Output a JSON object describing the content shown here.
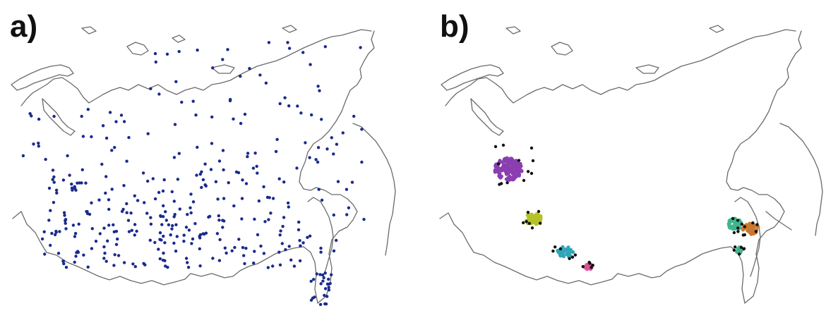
{
  "panels": [
    {
      "label": "a)",
      "station_color": "#1a2a8c"
    },
    {
      "label": "b)",
      "station_color": "#111111",
      "cluster_colors": [
        "#8a3fb0",
        "#b5c22a",
        "#2fa6b8",
        "#e0509a",
        "#c9782f",
        "#3fb58a"
      ]
    }
  ]
}
